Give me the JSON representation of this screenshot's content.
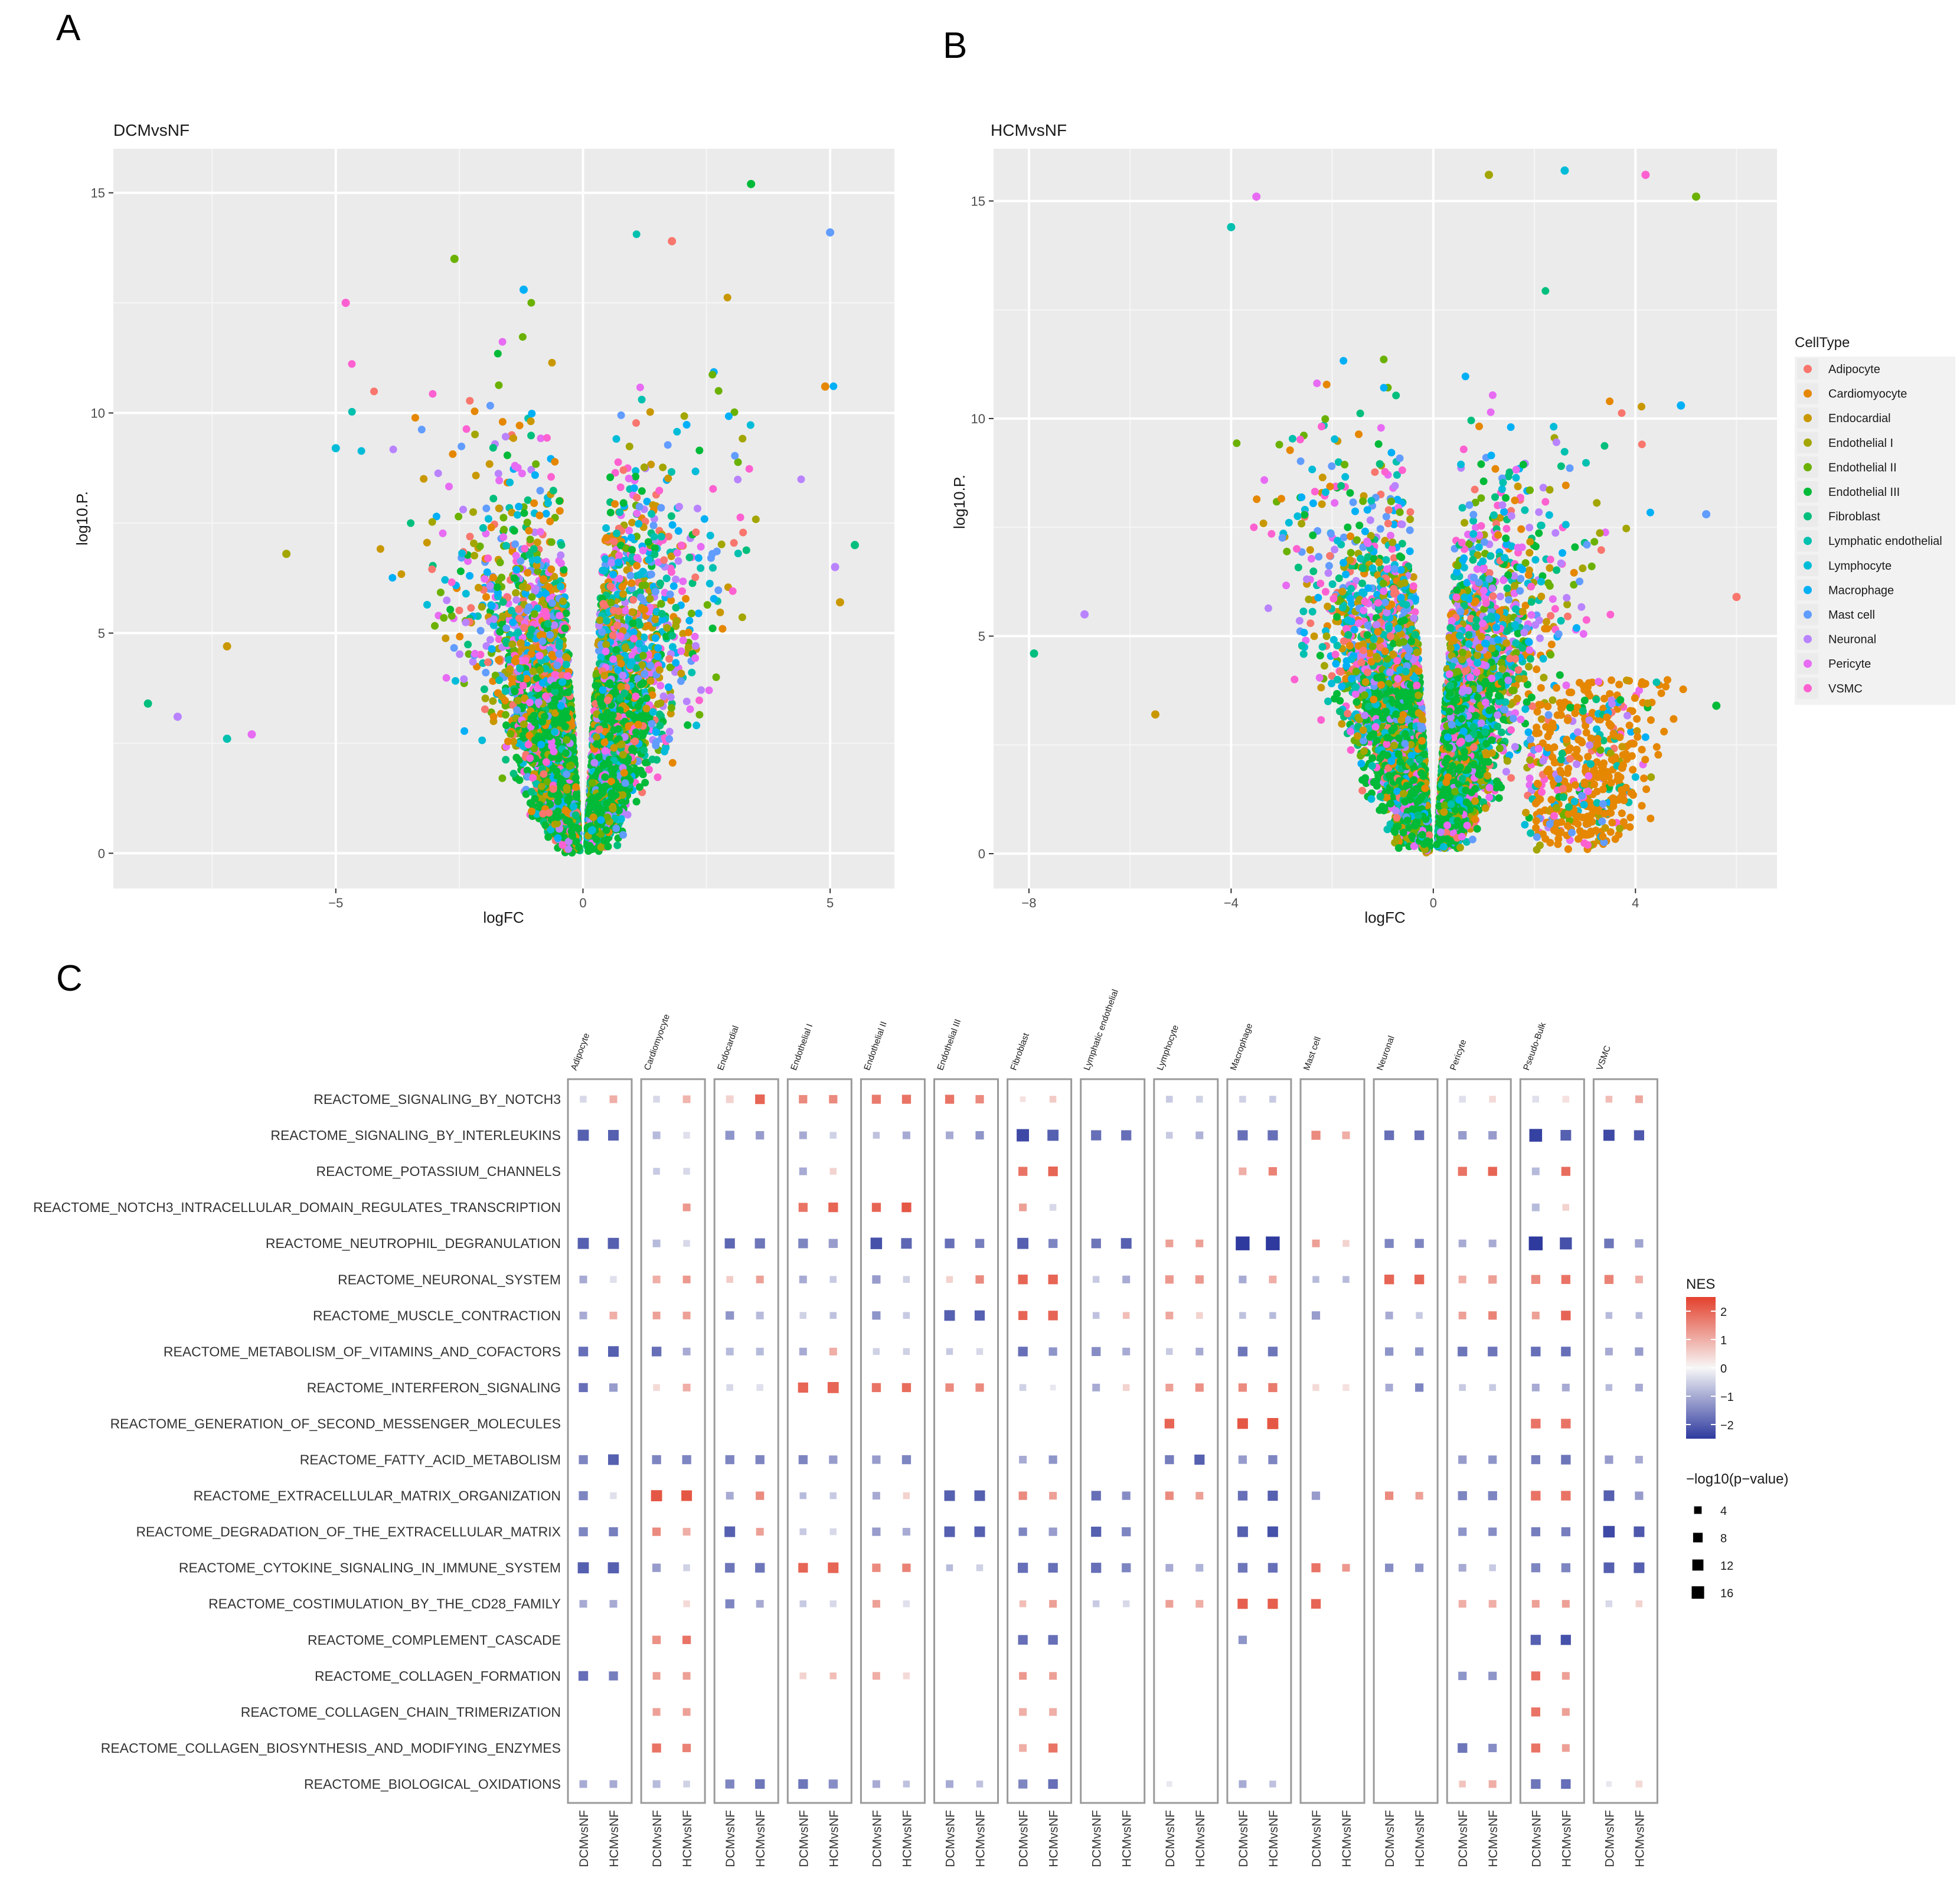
{
  "figure": {
    "panel_labels": [
      "A",
      "B",
      "C"
    ],
    "legend": {
      "title": "CellType",
      "entries": [
        {
          "name": "Adipocyte",
          "color": "#F8766D"
        },
        {
          "name": "Cardiomyocyte",
          "color": "#E58700"
        },
        {
          "name": "Endocardial",
          "color": "#C99800"
        },
        {
          "name": "Endothelial I",
          "color": "#A3A500"
        },
        {
          "name": "Endothelial II",
          "color": "#6BB100"
        },
        {
          "name": "Endothelial III",
          "color": "#00BA38"
        },
        {
          "name": "Fibroblast",
          "color": "#00BF7D"
        },
        {
          "name": "Lymphatic endothelial",
          "color": "#00C0AF"
        },
        {
          "name": "Lymphocyte",
          "color": "#00BCD8"
        },
        {
          "name": "Macrophage",
          "color": "#00B0F6"
        },
        {
          "name": "Mast cell",
          "color": "#619CFF"
        },
        {
          "name": "Neuronal",
          "color": "#B983FF"
        },
        {
          "name": "Pericyte",
          "color": "#E76BF3"
        },
        {
          "name": "VSMC",
          "color": "#FD61D1"
        }
      ]
    }
  },
  "chart_data": [
    {
      "type": "scatter",
      "panel": "A",
      "title": "DCMvsNF",
      "xlabel": "logFC",
      "ylabel": "log10.P.",
      "xlim": [
        -9.5,
        6.3
      ],
      "ylim": [
        -0.8,
        16
      ],
      "xticks": [
        -5,
        0,
        5
      ],
      "yticks": [
        0,
        5,
        10,
        15
      ],
      "xticklabels": [
        "−5",
        "0",
        "5"
      ],
      "yticklabels": [
        "0",
        "5",
        "10",
        "15"
      ],
      "grid": true,
      "series_note": "volcano distribution of differential expression by cell type, colored by CellType",
      "highlight_points": [
        {
          "x": -8.8,
          "y": 3.4
        },
        {
          "x": -8.2,
          "y": 3.1
        },
        {
          "x": -7.2,
          "y": 4.7
        },
        {
          "x": -7.2,
          "y": 2.6
        },
        {
          "x": -6.7,
          "y": 2.7
        },
        {
          "x": -6.0,
          "y": 6.8
        },
        {
          "x": -5.0,
          "y": 9.2
        },
        {
          "x": -4.8,
          "y": 12.5
        },
        {
          "x": -2.6,
          "y": 13.5
        },
        {
          "x": -1.2,
          "y": 12.8
        },
        {
          "x": 1.8,
          "y": 13.9
        },
        {
          "x": 3.4,
          "y": 15.2
        },
        {
          "x": 5.0,
          "y": 14.1
        },
        {
          "x": 4.9,
          "y": 10.6
        },
        {
          "x": 5.5,
          "y": 7.0
        },
        {
          "x": 5.1,
          "y": 6.5
        },
        {
          "x": 5.2,
          "y": 5.7
        }
      ]
    },
    {
      "type": "scatter",
      "panel": "B",
      "title": "HCMvsNF",
      "xlabel": "logFC",
      "ylabel": "log10.P.",
      "xlim": [
        -8.7,
        6.8
      ],
      "ylim": [
        -0.8,
        16.2
      ],
      "xticks": [
        -8,
        -4,
        0,
        4
      ],
      "yticks": [
        0,
        5,
        10,
        15
      ],
      "xticklabels": [
        "−8",
        "−4",
        "0",
        "4"
      ],
      "yticklabels": [
        "0",
        "5",
        "10",
        "15"
      ],
      "grid": true,
      "series_note": "volcano distribution of differential expression by cell type, colored by CellType",
      "highlight_points": [
        {
          "x": -7.9,
          "y": 4.6
        },
        {
          "x": -6.9,
          "y": 5.5
        },
        {
          "x": -5.5,
          "y": 3.2
        },
        {
          "x": -4.0,
          "y": 14.4
        },
        {
          "x": -3.5,
          "y": 15.1
        },
        {
          "x": 1.1,
          "y": 15.6
        },
        {
          "x": 2.6,
          "y": 15.7
        },
        {
          "x": 4.2,
          "y": 15.6
        },
        {
          "x": 5.2,
          "y": 15.1
        },
        {
          "x": 4.9,
          "y": 10.3
        },
        {
          "x": 6.0,
          "y": 5.9
        },
        {
          "x": 5.6,
          "y": 3.4
        },
        {
          "x": 5.4,
          "y": 7.8
        }
      ]
    },
    {
      "type": "dotplot",
      "panel": "C",
      "columns": [
        "Adipocyte",
        "Cardiomyocyte",
        "Endocardial",
        "Endothelial I",
        "Endothelial II",
        "Endothelial III",
        "Fibroblast",
        "Lymphatic endothelial",
        "Lymphocyte",
        "Macrophage",
        "Mast cell",
        "Neuronal",
        "Pericyte",
        "Pseudo-Bulk",
        "VSMC"
      ],
      "conditions": [
        "DCMvsNF",
        "HCMvsNF"
      ],
      "rows": [
        "REACTOME_SIGNALING_BY_NOTCH3",
        "REACTOME_SIGNALING_BY_INTERLEUKINS",
        "REACTOME_POTASSIUM_CHANNELS",
        "REACTOME_NOTCH3_INTRACELLULAR_DOMAIN_REGULATES_TRANSCRIPTION",
        "REACTOME_NEUTROPHIL_DEGRANULATION",
        "REACTOME_NEURONAL_SYSTEM",
        "REACTOME_MUSCLE_CONTRACTION",
        "REACTOME_METABOLISM_OF_VITAMINS_AND_COFACTORS",
        "REACTOME_INTERFERON_SIGNALING",
        "REACTOME_GENERATION_OF_SECOND_MESSENGER_MOLECULES",
        "REACTOME_FATTY_ACID_METABOLISM",
        "REACTOME_EXTRACELLULAR_MATRIX_ORGANIZATION",
        "REACTOME_DEGRADATION_OF_THE_EXTRACELLULAR_MATRIX",
        "REACTOME_CYTOKINE_SIGNALING_IN_IMMUNE_SYSTEM",
        "REACTOME_COSTIMULATION_BY_THE_CD28_FAMILY",
        "REACTOME_COMPLEMENT_CASCADE",
        "REACTOME_COLLAGEN_FORMATION",
        "REACTOME_COLLAGEN_CHAIN_TRIMERIZATION",
        "REACTOME_COLLAGEN_BIOSYNTHESIS_AND_MODIFYING_ENZYMES",
        "REACTOME_BIOLOGICAL_OXIDATIONS"
      ],
      "note": "cells encoded as 'NES:-log10p' per condition (DCM|HCM), '-' = no dot",
      "cells": [
        [
          "-0.4:2|1.0:3",
          "-0.4:2|0.9:3",
          "0.5:3|2.0:6",
          "1.5:4|1.5:4",
          "1.7:5|1.8:5",
          "1.8:5|1.5:4",
          "0.3:1|0.6:2",
          "-|-",
          "-0.6:2|-0.5:2",
          "-0.5:2|-0.6:2",
          "-|-",
          "-|-",
          "-0.3:2|0.4:2",
          "-0.3:2|0.3:2",
          "0.8:2|1.1:3"
        ],
        [
          "-2.0:9|-2.0:8",
          "-0.8:3|-0.3:2",
          "-1.3:5|-1.2:4",
          "-1.0:3|-0.5:2",
          "-0.7:2|-1.0:3",
          "-1.0:3|-1.3:4",
          "-2.3:12|-2.0:9",
          "-1.8:7|-1.8:7",
          "-0.6:2|-0.9:3",
          "-1.8:7|-1.8:7",
          "1.5:5|1.0:3",
          "-1.8:6|-1.8:6",
          "-1.2:4|-1.2:4",
          "-2.4:13|-2.0:8",
          "-2.3:9|-2.1:7"
        ],
        [
          "-|-",
          "-0.6:2|-0.4:2",
          "-|-",
          "-1.0:3|0.5:2",
          "-|-",
          "-|-",
          "1.8:5|2.0:6",
          "-|-",
          "-|-",
          "1.0:3|1.6:4",
          "-|-",
          "-|-",
          "1.8:5|2.0:5",
          "-0.8:3|1.9:5",
          "-|-"
        ],
        [
          "-|-",
          "-|1.3:3",
          "-|-",
          "1.8:5|2.0:6",
          "2.0:5|2.2:6",
          "-|-",
          "1.2:3|-0.4:2",
          "-|-",
          "-|-",
          "-|-",
          "-|-",
          "-|-",
          "-|-",
          "-0.8:3|0.5:2",
          "-|-"
        ],
        [
          "-2.0:9|-2.0:9",
          "-0.8:3|-0.4:2",
          "-1.9:7|-1.7:7",
          "-1.5:6|-1.2:5",
          "-2.2:10|-1.9:8",
          "-1.8:6|-1.6:5",
          "-2.0:9|-1.5:5",
          "-1.7:6|-2.0:8",
          "1.2:3|1.2:3",
          "-2.5:16|-2.5:16",
          "1.2:3|0.5:2",
          "-1.5:5|-1.5:5",
          "-1.0:3|-1.0:3",
          "-2.6:16|-2.2:11",
          "-1.7:6|-1.1:4"
        ],
        [
          "-1.0:3|-0.3:2",
          "1.0:3|1.3:3",
          "0.6:2|1.2:3",
          "-1.0:3|-0.6:2",
          "-1.2:4|-0.5:2",
          "0.5:2|1.5:4",
          "2.0:6|2.0:6",
          "-0.6:2|-1.0:3",
          "1.3:4|1.3:4",
          "-1.0:3|1.0:3",
          "-0.8:2|-0.8:2",
          "2.0:6|2.0:6",
          "1.0:3|1.2:4",
          "1.5:5|1.8:5",
          "1.6:5|1.0:3"
        ],
        [
          "-1.0:3|1.0:3",
          "1.2:3|1.2:3",
          "-1.3:4|-0.8:3",
          "-0.5:2|-0.7:2",
          "-1.3:4|-0.6:2",
          "-2.0:8|-2.0:7",
          "2.0:5|2.0:6",
          "-0.7:2|0.8:2",
          "1.1:3|0.5:2",
          "-0.7:2|-0.8:2",
          "-1.2:4|-|",
          "-1.0:3|-0.6:2",
          "1.2:3|1.6:4",
          "1.2:3|2.0:6",
          "-0.8:2|-0.8:2"
        ],
        [
          "-1.8:6|-2.0:8",
          "-1.8:6|-1.0:3",
          "-0.8:3|-0.8:3",
          "-1.0:3|1.0:3",
          "-0.5:2|-0.5:2",
          "-0.6:2|-0.4:2",
          "-1.8:6|-1.3:4",
          "-1.4:5|-1.0:3",
          "-0.6:2|-1.0:3",
          "-1.7:6|-1.7:6",
          "-|-",
          "-1.3:4|-1.3:4",
          "-1.7:6|-1.7:6",
          "-1.8:6|-1.8:6",
          "-1.0:3|-1.2:4"
        ],
        [
          "-1.8:5|-1.2:4",
          "0.4:2|1.0:3",
          "-0.4:2|-0.3:2",
          "2.0:7|2.0:9",
          "1.8:5|1.9:5",
          "1.5:4|1.5:4",
          "-0.5:2|-0.2:1",
          "-1.0:3|0.5:2",
          "1.2:3|1.4:4",
          "1.5:4|1.7:5",
          "0.4:2|0.3:2",
          "-1.0:3|-1.5:4",
          "-0.6:2|-0.6:2",
          "-1.0:3|-1.0:3",
          "-0.8:2|-1.0:3"
        ],
        [
          "-|-",
          "-|-",
          "-|-",
          "-|-",
          "-|-",
          "-|-",
          "-|-",
          "-|-",
          "2.0:6|-|",
          "2.2:8|2.2:9",
          "-|-",
          "-|-",
          "-|-",
          "1.8:6|1.8:6",
          "-|-"
        ],
        [
          "-1.5:5|-2.0:8",
          "-1.5:5|-1.5:5",
          "-1.5:5|-1.5:5",
          "-1.5:5|-1.2:4",
          "-1.2:4|-1.5:5",
          "-|-",
          "-1.0:3|-1.3:4",
          "-|-",
          "-1.6:5|-2.0:7",
          "-1.2:4|-1.5:5",
          "-|-",
          "-|-",
          "-1.2:4|-1.3:4",
          "-1.6:5|-1.7:6",
          "-1.2:4|-1.0:3"
        ],
        [
          "-1.5:5|-0.3:2",
          "2.2:9|2.2:8",
          "-1.0:3|1.5:4",
          "-0.8:2|-0.6:2",
          "-1.0:3|0.5:2",
          "-2.0:8|-2.0:8",
          "1.5:4|1.2:3",
          "-1.8:6|-1.4:4",
          "1.5:4|1.2:3",
          "-1.8:6|-2.0:7",
          "-1.2:4|-|",
          "1.5:4|1.2:3",
          "-1.5:5|-1.5:5",
          "1.8:6|1.8:6",
          "-2.0:8|-1.2:4"
        ],
        [
          "-1.5:5|-1.6:5",
          "1.5:4|1.0:3",
          "-2.0:8|1.2:3",
          "-0.6:2|-0.4:2",
          "-1.2:4|-1.0:3",
          "-2.0:8|-2.0:8",
          "-1.5:4|-1.2:4",
          "-2.0:7|-1.5:5",
          "-|-",
          "-2.0:8|-2.2:8",
          "-|-",
          "-|-",
          "-1.3:4|-1.4:4",
          "-1.6:5|-1.6:5",
          "-2.3:10|-2.1:8"
        ],
        [
          "-2.0:9|-2.0:9",
          "-1.2:4|-0.5:2",
          "-1.7:6|-1.7:6",
          "2.0:6|2.0:8",
          "1.5:4|1.6:4",
          "-0.8:2|-0.5:2",
          "-1.8:7|-1.8:6",
          "-1.8:7|-1.5:5",
          "-1.0:3|-0.9:3",
          "-1.7:6|-1.8:6",
          "1.8:5|1.3:3",
          "-1.4:4|-1.3:4",
          "-1.0:3|-0.6:2",
          "-1.5:5|-1.5:5",
          "-2.0:8|-2.0:8"
        ],
        [
          "-1.0:3|-1.0:3",
          "-|0.4:2",
          "-1.5:5|-1.0:3",
          "-0.6:2|-0.4:2",
          "1.2:3|-0.3:2",
          "-|-",
          "0.8:2|1.2:3",
          "-0.6:2|-0.4:2",
          "1.2:3|1.0:3",
          "2.1:7|2.1:7",
          "2.0:6|-|",
          "-|-",
          "1.0:3|1.0:3",
          "1.2:3|1.2:3",
          "-0.4:2|0.5:2"
        ],
        [
          "-|-",
          "1.4:4|1.8:4",
          "-|-",
          "-|-",
          "-|-",
          "-|-",
          "-1.8:6|-1.8:6",
          "-|-",
          "-|-",
          "-1.3:4|-|",
          "-|-",
          "-|-",
          "-|-",
          "-2.0:7|-2.2:7",
          "-|-"
        ],
        [
          "-1.8:6|-1.6:5",
          "1.2:3|1.2:3",
          "-|-",
          "0.5:2|0.8:2",
          "1.0:3|0.4:2",
          "-|-",
          "1.3:3|1.2:3",
          "-|-",
          "-|-",
          "-|-",
          "-|-",
          "-|-",
          "-1.3:4|-1.3:4",
          "1.8:5|1.2:3",
          "-|-"
        ],
        [
          "-|-",
          "1.2:3|1.2:3",
          "-|-",
          "-|-",
          "-|-",
          "-|-",
          "1.0:3|1.0:3",
          "-|-",
          "-|-",
          "-|-",
          "-|-",
          "-|-",
          "-|-",
          "1.8:5|1.2:3",
          "-|-"
        ],
        [
          "-|-",
          "1.8:5|1.6:4",
          "-|-",
          "-|-",
          "-|-",
          "-|-",
          "1.0:3|1.8:5",
          "-|-",
          "-|-",
          "-|-",
          "-|-",
          "-|-",
          "-1.7:6|-1.4:4",
          "1.8:5|1.2:3",
          "-|-"
        ],
        [
          "-1.0:3|-1.0:3",
          "-0.8:3|-0.5:2",
          "-1.5:5|-1.7:6",
          "-1.7:6|-1.4:5",
          "-1.0:3|-0.7:2",
          "-1.0:3|-0.7:2",
          "-1.5:5|-1.8:6",
          "-|-",
          "-0.2:1|-|",
          "-1.0:3|-0.7:2",
          "-|-",
          "-|-",
          "0.7:2|1.0:3",
          "-1.7:6|-1.8:6",
          "-0.2:1|0.4:2"
        ]
      ],
      "nes_legend": {
        "title": "NES",
        "min": -2.5,
        "max": 2.5,
        "ticks": [
          2,
          1,
          0,
          -1,
          -2
        ],
        "ticklabels": [
          "2",
          "1",
          "0",
          "−1",
          "−2"
        ],
        "low_color": "#2E3A9E",
        "mid_color": "#F7F7F7",
        "high_color": "#E3412D"
      },
      "size_legend": {
        "title": "−log10(p−value)",
        "values": [
          4,
          8,
          12,
          16
        ],
        "labels": [
          "4",
          "8",
          "12",
          "16"
        ]
      }
    }
  ]
}
